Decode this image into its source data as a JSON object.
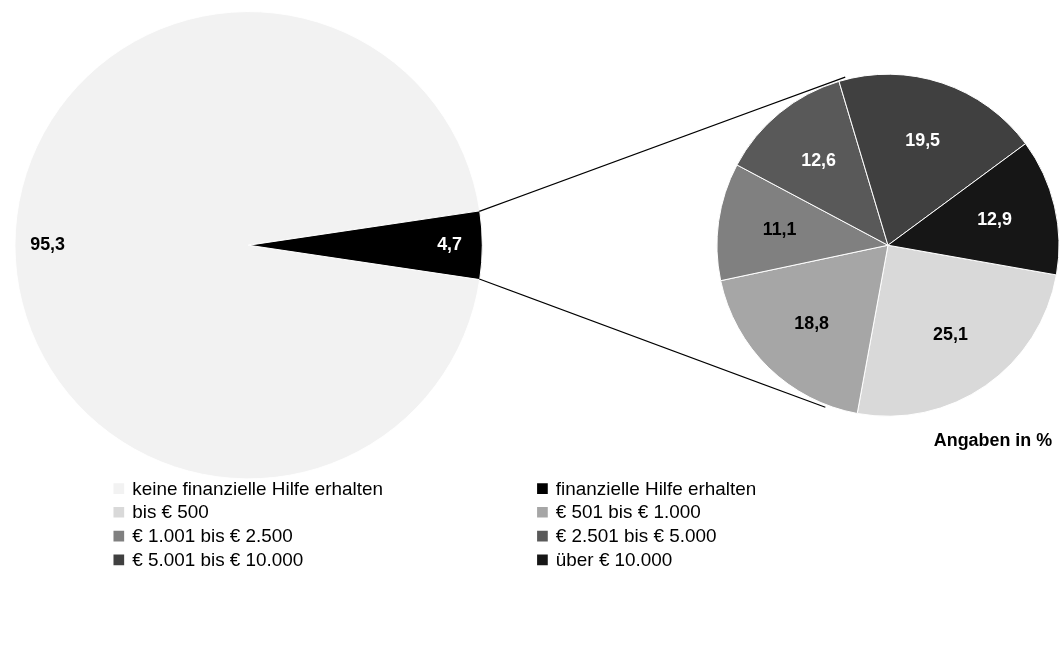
{
  "chart_data": [
    {
      "type": "pie",
      "categories": [
        "keine finanzielle Hilfe erhalten",
        "finanzielle Hilfe erhalten"
      ],
      "values": [
        95.3,
        4.7
      ],
      "colors": [
        "#f2f2f2",
        "#000000"
      ],
      "value_labels": [
        "95,3",
        "4,7"
      ],
      "legend": "bottom"
    },
    {
      "type": "pie",
      "categories": [
        "bis € 500",
        "€ 501 bis € 1.000",
        "€ 1.001 bis € 2.500",
        "€ 2.501 bis € 5.000",
        "€ 5.001 bis € 10.000",
        "über € 10.000"
      ],
      "values": [
        25.1,
        18.8,
        11.1,
        12.6,
        19.5,
        12.9
      ],
      "colors": [
        "#d9d9d9",
        "#a6a6a6",
        "#808080",
        "#595959",
        "#404040",
        "#161616"
      ],
      "value_labels": [
        "25,1",
        "18,8",
        "11,1",
        "12,6",
        "19,5",
        "12,9"
      ],
      "legend": "bottom",
      "annotations": [
        "Angaben in %"
      ]
    }
  ]
}
